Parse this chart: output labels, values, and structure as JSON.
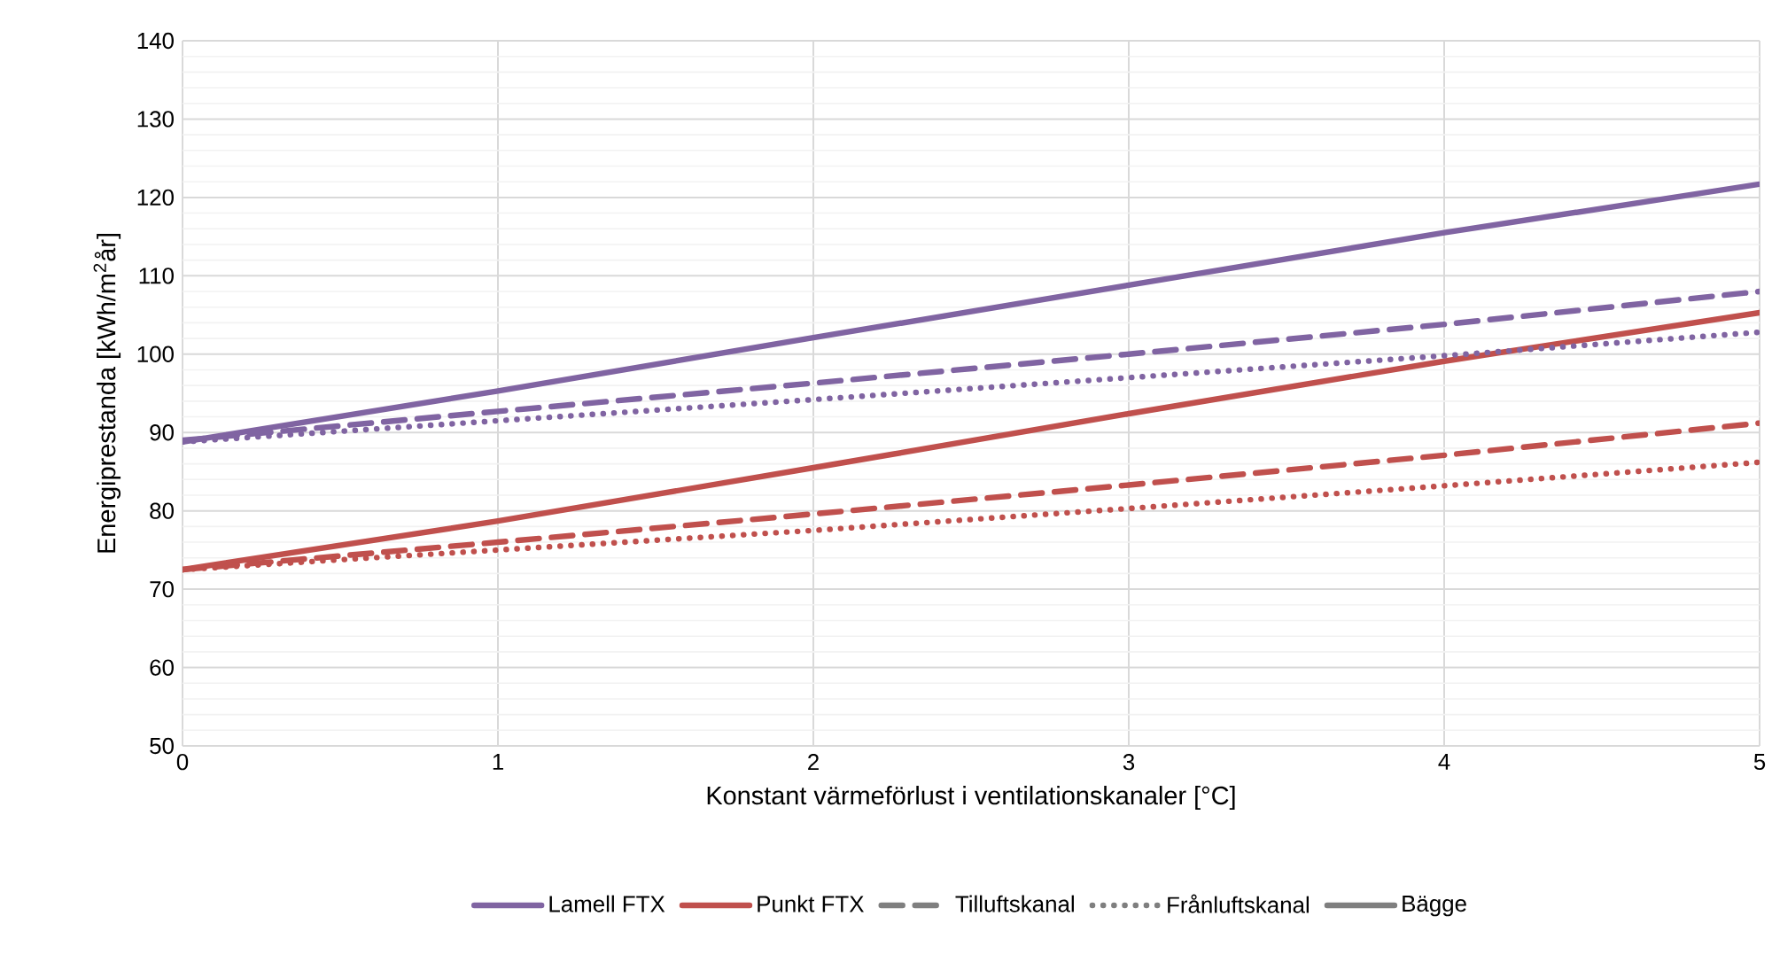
{
  "chart_data": {
    "type": "line",
    "xlabel": "Konstant värmeförlust i ventilationskanaler [°C]",
    "ylabel": "Energiprestanda [kWh/m$^{2}$år]",
    "x": [
      0,
      1,
      2,
      3,
      4,
      5
    ],
    "xlim": [
      0,
      5
    ],
    "ylim": [
      50,
      140
    ],
    "xticks": [
      0,
      1,
      2,
      3,
      4,
      5
    ],
    "yticks": [
      50,
      60,
      70,
      80,
      90,
      100,
      110,
      120,
      130,
      140
    ],
    "grid": true,
    "legend": "bottom",
    "marker": "none",
    "series": [
      {
        "name": "Lamell FTX",
        "color": "#8064a2",
        "line_style": "solid",
        "values": [
          88.8,
          95.3,
          102.1,
          108.8,
          115.5,
          121.7
        ]
      },
      {
        "name": "Punkt FTX",
        "color": "#c0504d",
        "line_style": "solid",
        "values": [
          72.5,
          78.7,
          85.5,
          92.4,
          99.1,
          105.3
        ]
      },
      {
        "color": "#8064a2",
        "line_style": "dashed",
        "values": [
          89,
          92.7,
          96.3,
          100,
          103.8,
          108
        ]
      },
      {
        "color": "#8064a2",
        "line_style": "dotted",
        "values": [
          88.8,
          91.5,
          94.2,
          97,
          99.8,
          102.8
        ]
      },
      {
        "color": "#c0504d",
        "line_style": "dashed",
        "values": [
          72.5,
          76,
          79.6,
          83.3,
          87.1,
          91.2
        ]
      },
      {
        "color": "#c0504d",
        "line_style": "dotted",
        "values": [
          72.5,
          75,
          77.5,
          80.3,
          83.2,
          86.2
        ]
      },
      {
        "name": "Tilluftskanal",
        "color": "#7f7f7f",
        "line_style": "dashed",
        "values": [
          null,
          null,
          null,
          null,
          null,
          null
        ]
      },
      {
        "name": "Frånluftskanal",
        "color": "#7f7f7f",
        "line_style": "dotted",
        "values": [
          null,
          null,
          null,
          null,
          null,
          null
        ]
      },
      {
        "name": "Bägge",
        "color": "#7f7f7f",
        "line_style": "solid",
        "values": [
          null,
          null,
          null,
          null,
          null,
          null
        ]
      }
    ]
  }
}
